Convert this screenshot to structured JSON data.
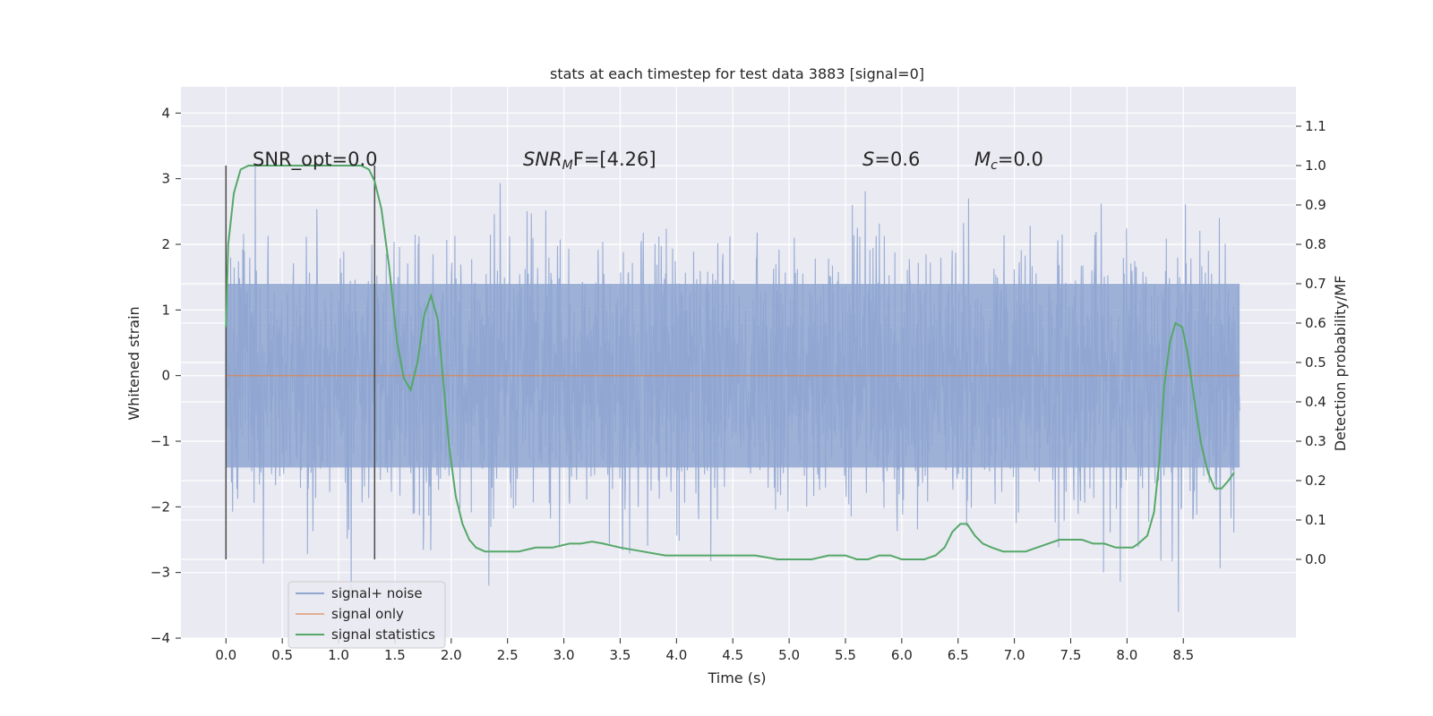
{
  "chart_data": {
    "type": "line",
    "title": "stats at each timestep for test data 3883 [signal=0]",
    "xlabel": "Time (s)",
    "ylabel_left": "Whitened strain",
    "ylabel_right": "Detection probability/MF",
    "xlim": [
      -0.4,
      9.5
    ],
    "ylim_left": [
      -4,
      4.4
    ],
    "ylim_right": [
      -0.2,
      1.2
    ],
    "x_ticks": [
      0.0,
      0.5,
      1.0,
      1.5,
      2.0,
      2.5,
      3.0,
      3.5,
      4.0,
      4.5,
      5.0,
      5.5,
      6.0,
      6.5,
      7.0,
      7.5,
      8.0,
      8.5
    ],
    "x_tick_labels": [
      "0.0",
      "0.5",
      "1.0",
      "1.5",
      "2.0",
      "2.5",
      "3.0",
      "3.5",
      "4.0",
      "4.5",
      "5.0",
      "5.5",
      "6.0",
      "6.5",
      "7.0",
      "7.5",
      "8.0",
      "8.5"
    ],
    "y_ticks_left": [
      4,
      3,
      2,
      1,
      0,
      -1,
      -2,
      -3,
      -4
    ],
    "y_tick_labels_left": [
      "4",
      "3",
      "2",
      "1",
      "0",
      "−1",
      "−2",
      "−3",
      "−4"
    ],
    "y_ticks_right": [
      1.1,
      1.0,
      0.9,
      0.8,
      0.7,
      0.6,
      0.5,
      0.4,
      0.3,
      0.2,
      0.1,
      0.0
    ],
    "y_tick_labels_right": [
      "1.1",
      "1.0",
      "0.9",
      "0.8",
      "0.7",
      "0.6",
      "0.5",
      "0.4",
      "0.3",
      "0.2",
      "0.1",
      "0.0"
    ],
    "annotations": {
      "snr_opt": "SNR_opt=0.0",
      "snr_mf_main": "SNR",
      "snr_mf_sub": "M",
      "snr_mf_rest": "F=[4.26]",
      "s_main": "S",
      "s_rest": "=0.6",
      "mc_main": "M",
      "mc_sub": "c",
      "mc_rest": "=0.0"
    },
    "vertical_lines": [
      {
        "x": 0.0,
        "y_range": [
          -2.8,
          3.2
        ]
      },
      {
        "x": 1.32,
        "y_range": [
          -2.8,
          3.2
        ]
      }
    ],
    "noise": {
      "x_start": 0.0,
      "x_end": 9.0,
      "core_amplitude": 1.4,
      "max_amplitude": 3.6,
      "color": "#8fa6d1"
    },
    "series": [
      {
        "name": "signal+ noise",
        "color": "#8fa6d1",
        "axis": "left",
        "style": "dense noise"
      },
      {
        "name": "signal only",
        "color": "#dd8452",
        "axis": "left",
        "x": [
          0.0,
          9.0
        ],
        "y": [
          0.0,
          0.0
        ]
      },
      {
        "name": "signal statistics",
        "color": "#55a868",
        "axis": "right",
        "x": [
          0.0,
          0.02,
          0.07,
          0.13,
          0.2,
          0.3,
          0.5,
          0.7,
          0.9,
          1.0,
          1.1,
          1.2,
          1.27,
          1.32,
          1.38,
          1.45,
          1.52,
          1.58,
          1.64,
          1.7,
          1.76,
          1.82,
          1.88,
          1.93,
          1.98,
          2.04,
          2.1,
          2.16,
          2.22,
          2.3,
          2.4,
          2.5,
          2.6,
          2.75,
          2.9,
          3.05,
          3.15,
          3.25,
          3.35,
          3.5,
          3.7,
          3.9,
          4.1,
          4.3,
          4.5,
          4.7,
          4.9,
          5.05,
          5.2,
          5.35,
          5.5,
          5.6,
          5.7,
          5.8,
          5.9,
          6.0,
          6.1,
          6.2,
          6.3,
          6.38,
          6.45,
          6.52,
          6.58,
          6.65,
          6.72,
          6.8,
          6.9,
          7.0,
          7.1,
          7.2,
          7.3,
          7.4,
          7.5,
          7.6,
          7.7,
          7.8,
          7.9,
          8.0,
          8.05,
          8.1,
          8.18,
          8.24,
          8.29,
          8.33,
          8.38,
          8.43,
          8.49,
          8.54,
          8.6,
          8.66,
          8.72,
          8.78,
          8.84,
          8.9,
          8.95
        ],
        "y": [
          0.59,
          0.8,
          0.93,
          0.99,
          1.0,
          1.0,
          1.0,
          1.0,
          1.0,
          1.0,
          1.0,
          1.0,
          0.99,
          0.96,
          0.89,
          0.74,
          0.55,
          0.46,
          0.43,
          0.5,
          0.62,
          0.67,
          0.61,
          0.45,
          0.29,
          0.16,
          0.09,
          0.05,
          0.03,
          0.02,
          0.02,
          0.02,
          0.02,
          0.03,
          0.03,
          0.04,
          0.04,
          0.045,
          0.04,
          0.03,
          0.02,
          0.01,
          0.01,
          0.01,
          0.01,
          0.01,
          0.0,
          0.0,
          0.0,
          0.01,
          0.01,
          0.0,
          0.0,
          0.01,
          0.01,
          0.0,
          0.0,
          0.0,
          0.01,
          0.03,
          0.07,
          0.09,
          0.09,
          0.06,
          0.04,
          0.03,
          0.02,
          0.02,
          0.02,
          0.03,
          0.04,
          0.05,
          0.05,
          0.05,
          0.04,
          0.04,
          0.03,
          0.03,
          0.03,
          0.04,
          0.06,
          0.12,
          0.26,
          0.44,
          0.55,
          0.6,
          0.59,
          0.52,
          0.4,
          0.29,
          0.22,
          0.18,
          0.18,
          0.2,
          0.22
        ]
      }
    ],
    "legend": {
      "placement": "lower-left",
      "entries": [
        {
          "label": "signal+ noise",
          "color": "#8fa6d1"
        },
        {
          "label": "signal only",
          "color": "#dd8452"
        },
        {
          "label": "signal statistics",
          "color": "#55a868"
        }
      ]
    },
    "grid": true,
    "background": "#eaeaf2"
  }
}
